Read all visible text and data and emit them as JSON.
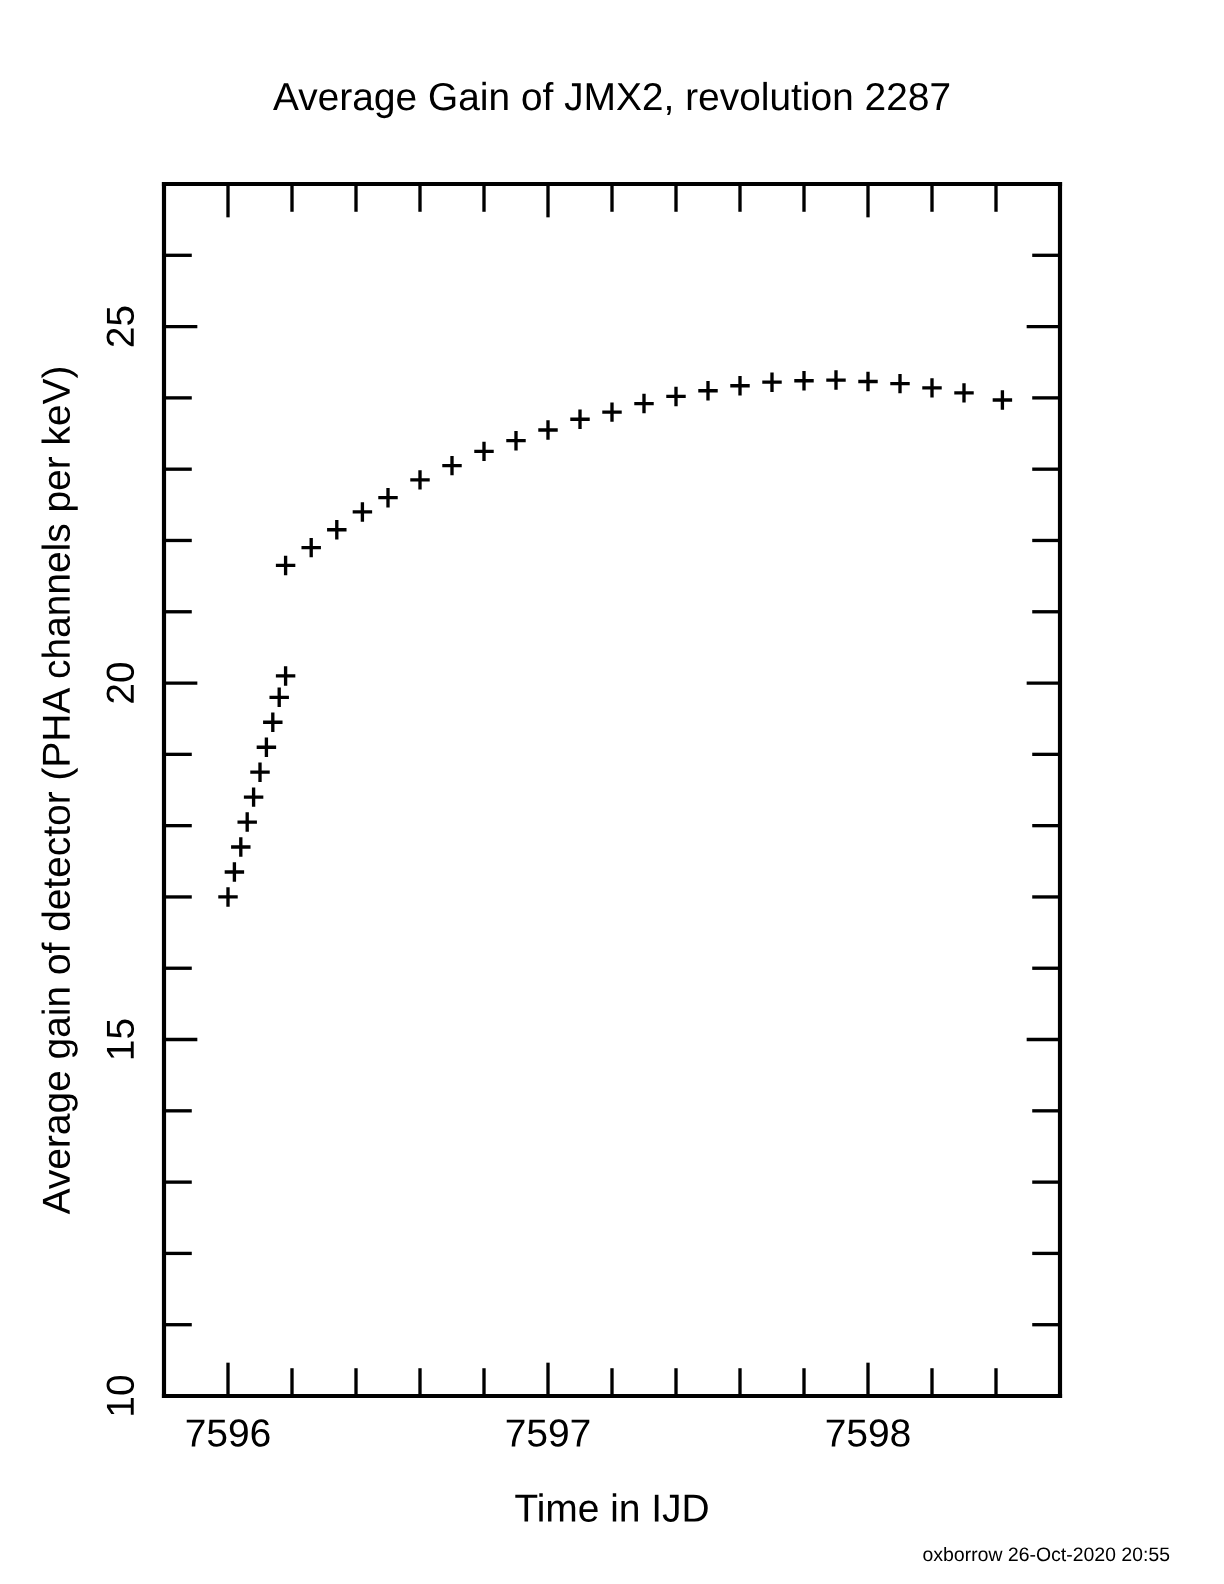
{
  "chart_data": {
    "type": "scatter",
    "title": "Average Gain of JMX2, revolution 2287",
    "xlabel": "Time in IJD",
    "ylabel": "Average gain of detector (PHA channels per keV)",
    "annotations": [
      "oxborrow 26-Oct-2020 20:55"
    ],
    "marker": "cross",
    "grid": false,
    "legend": false,
    "xlim": [
      7595.8,
      7598.6
    ],
    "ylim": [
      10,
      27
    ],
    "xticks": [
      {
        "value": 7595.8,
        "label": null
      },
      7596,
      {
        "value": 7596.2,
        "label": null
      },
      {
        "value": 7596.4,
        "label": null
      },
      {
        "value": 7596.6,
        "label": null
      },
      {
        "value": 7596.8,
        "label": null
      },
      7597,
      {
        "value": 7597.2,
        "label": null
      },
      {
        "value": 7597.4,
        "label": null
      },
      {
        "value": 7597.6,
        "label": null
      },
      {
        "value": 7597.8,
        "label": null
      },
      7598,
      {
        "value": 7598.2,
        "label": null
      },
      {
        "value": 7598.4,
        "label": null
      }
    ],
    "yticks": [
      10,
      {
        "value": 11,
        "label": null
      },
      {
        "value": 12,
        "label": null
      },
      {
        "value": 13,
        "label": null
      },
      {
        "value": 14,
        "label": null
      },
      15,
      {
        "value": 16,
        "label": null
      },
      {
        "value": 17,
        "label": null
      },
      {
        "value": 18,
        "label": null
      },
      {
        "value": 19,
        "label": null
      },
      20,
      {
        "value": 21,
        "label": null
      },
      {
        "value": 22,
        "label": null
      },
      {
        "value": 23,
        "label": null
      },
      {
        "value": 24,
        "label": null
      },
      25,
      {
        "value": 26,
        "label": null
      }
    ],
    "series": [
      {
        "color": "#000000",
        "x": [
          7596.0,
          7596.02,
          7596.04,
          7596.06,
          7596.08,
          7596.1,
          7596.12,
          7596.14,
          7596.16,
          7596.18,
          7596.18,
          7596.26,
          7596.34,
          7596.42,
          7596.5,
          7596.6,
          7596.7,
          7596.8,
          7596.9,
          7597.0,
          7597.1,
          7597.2,
          7597.3,
          7597.4,
          7597.5,
          7597.6,
          7597.7,
          7597.8,
          7597.9,
          7598.0,
          7598.1,
          7598.2,
          7598.3,
          7598.42
        ],
        "values": [
          17.0,
          17.35,
          17.7,
          18.05,
          18.4,
          18.75,
          19.1,
          19.45,
          19.8,
          20.1,
          21.65,
          21.9,
          22.15,
          22.4,
          22.6,
          22.85,
          23.05,
          23.25,
          23.4,
          23.55,
          23.7,
          23.8,
          23.92,
          24.02,
          24.1,
          24.17,
          24.22,
          24.24,
          24.25,
          24.23,
          24.2,
          24.14,
          24.07,
          23.97
        ]
      }
    ]
  }
}
